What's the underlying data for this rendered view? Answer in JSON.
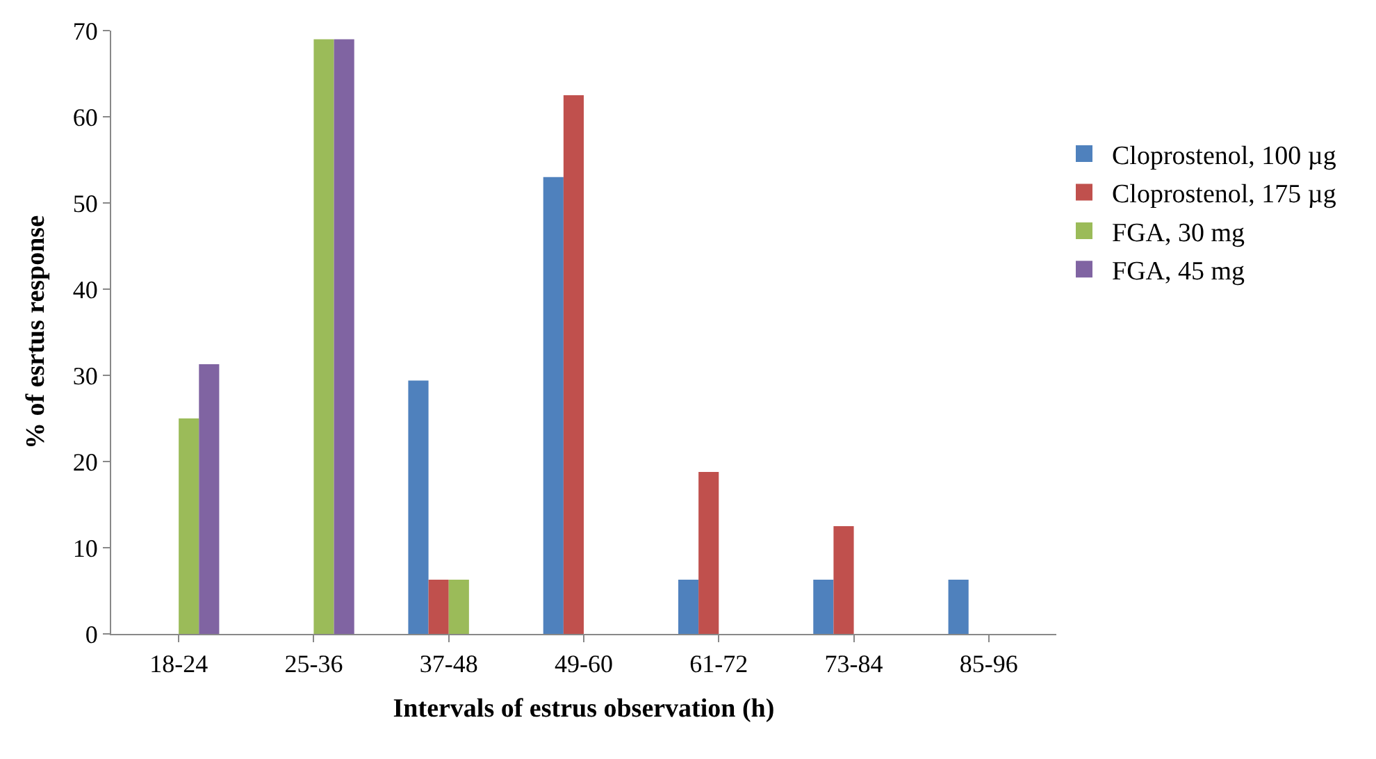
{
  "chart_data": {
    "type": "bar",
    "xlabel": "Intervals of estrus observation (h)",
    "ylabel": "% of esrtus response",
    "categories": [
      "18-24",
      "25-36",
      "37-48",
      "49-60",
      "61-72",
      "73-84",
      "85-96"
    ],
    "series": [
      {
        "name": "Cloprostenol, 100 µg",
        "color": "#4f81bd",
        "values": [
          null,
          null,
          29.4,
          53,
          6.3,
          6.3,
          6.3
        ]
      },
      {
        "name": "Cloprostenol, 175 µg",
        "color": "#c0504d",
        "values": [
          null,
          null,
          6.3,
          62.5,
          18.8,
          12.5,
          null
        ]
      },
      {
        "name": "FGA, 30 mg",
        "color": "#9bbb59",
        "values": [
          25,
          69,
          6.3,
          0,
          0,
          0,
          0
        ]
      },
      {
        "name": "FGA, 45 mg",
        "color": "#8064a2",
        "values": [
          31.3,
          69,
          0,
          0,
          0,
          0,
          0
        ]
      }
    ],
    "ylim": [
      0,
      70
    ],
    "yticks": [
      0,
      10,
      20,
      30,
      40,
      50,
      60,
      70
    ],
    "grid": false,
    "legend": "right"
  }
}
